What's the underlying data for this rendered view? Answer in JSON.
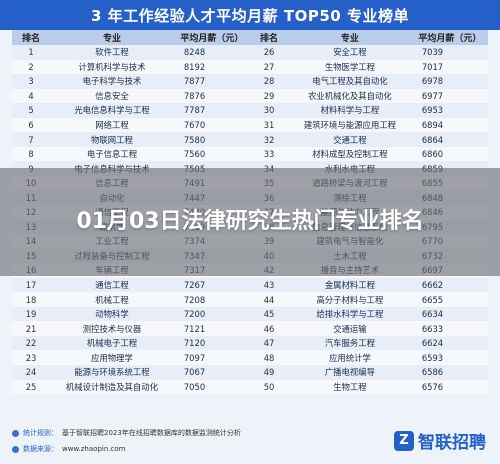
{
  "banner": {
    "title": "3 年工作经验人才平均月薪 TOP50 专业榜单"
  },
  "table": {
    "headers": [
      "排名",
      "专业",
      "平均月薪（元）",
      "排名",
      "专业",
      "平均月薪（元）"
    ],
    "rows": [
      [
        "1",
        "软件工程",
        "8248",
        "26",
        "安全工程",
        "7039"
      ],
      [
        "2",
        "计算机科学与技术",
        "8192",
        "27",
        "生物医学工程",
        "7017"
      ],
      [
        "3",
        "电子科学与技术",
        "7877",
        "28",
        "电气工程及其自动化",
        "6978"
      ],
      [
        "4",
        "信息安全",
        "7876",
        "29",
        "农业机械化及其自动化",
        "6977"
      ],
      [
        "5",
        "光电信息科学与工程",
        "7787",
        "30",
        "材料科学与工程",
        "6953"
      ],
      [
        "6",
        "网络工程",
        "7670",
        "31",
        "建筑环境与能源应用工程",
        "6894"
      ],
      [
        "7",
        "物联网工程",
        "7580",
        "32",
        "交通工程",
        "6864"
      ],
      [
        "8",
        "电子信息工程",
        "7560",
        "33",
        "材料成型及控制工程",
        "6860"
      ],
      [
        "9",
        "电子信息科学与技术",
        "7505",
        "34",
        "水利水电工程",
        "6859"
      ],
      [
        "10",
        "信息工程",
        "7491",
        "35",
        "道路桥梁与渡河工程",
        "6855"
      ],
      [
        "11",
        "自动化",
        "7447",
        "36",
        "测绘工程",
        "6848"
      ],
      [
        "12",
        "通信工程",
        "7430",
        "37",
        "能源与动力工程",
        "6846"
      ],
      [
        "13",
        "建筑学",
        "7419",
        "38",
        "信息管理与信息系统",
        "6795"
      ],
      [
        "14",
        "工业工程",
        "7374",
        "39",
        "建筑电气与智能化",
        "6770"
      ],
      [
        "15",
        "过程装备与控制工程",
        "7347",
        "40",
        "土木工程",
        "6732"
      ],
      [
        "16",
        "车辆工程",
        "7317",
        "42",
        "播音与主持艺术",
        "6697"
      ],
      [
        "17",
        "通信工程",
        "7267",
        "43",
        "金属材料工程",
        "6662"
      ],
      [
        "18",
        "机械工程",
        "7208",
        "44",
        "高分子材料与工程",
        "6655"
      ],
      [
        "19",
        "动物科学",
        "7200",
        "45",
        "给排水科学与工程",
        "6634"
      ],
      [
        "21",
        "测控技术与仪器",
        "7121",
        "46",
        "交通运输",
        "6633"
      ],
      [
        "22",
        "机械电子工程",
        "7120",
        "47",
        "汽车服务工程",
        "6624"
      ],
      [
        "23",
        "应用物理学",
        "7097",
        "48",
        "应用统计学",
        "6593"
      ],
      [
        "24",
        "能源与环境系统工程",
        "7067",
        "49",
        "广播电视编导",
        "6586"
      ],
      [
        "25",
        "机械设计制造及其自动化",
        "7050",
        "50",
        "生物工程",
        "6576"
      ]
    ]
  },
  "overlay": {
    "headline": "01月03日法律研究生热门专业排名"
  },
  "footer": {
    "note1_label": "统计规则：",
    "note1_text": "基于智联招聘2023年在线招聘数据库的数据监测统计分析",
    "note2_label": "数据来源：",
    "note2_text": "www.zhaopin.com",
    "logo_text": "智联招聘",
    "logo_mark": "Z"
  },
  "colors": {
    "banner": "#2560c8",
    "header": "#b9cdea",
    "row_odd": "#e8eef8",
    "row_even": "#f6f8fc"
  }
}
